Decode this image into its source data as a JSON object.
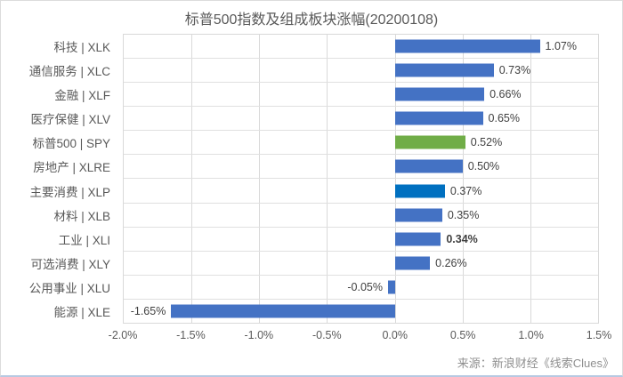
{
  "header": {
    "title": "标普500指数及组成板块涨幅(20200108)"
  },
  "footer": {
    "source": "来源：新浪财经《线索Clues》"
  },
  "colors": {
    "bar_default": "#4472C4",
    "bar_sp500": "#70AD47",
    "bar_xlp": "#0070C0",
    "gridline": "#D9D9D9",
    "axis_text": "#595959",
    "value_text": "#404040",
    "source_text": "#8F8F8F"
  },
  "chart_data": {
    "type": "bar",
    "orientation": "horizontal",
    "title": "标普500指数及组成板块涨幅(20200108)",
    "xlabel": "",
    "ylabel": "",
    "xlim": [
      -2.0,
      1.5
    ],
    "x_ticks": [
      "-2.0%",
      "-1.5%",
      "-1.0%",
      "-0.5%",
      "0.0%",
      "0.5%",
      "1.0%",
      "1.5%"
    ],
    "grid": true,
    "legend_position": "none",
    "categories": [
      "科技 | XLK",
      "通信服务 | XLC",
      "金融 | XLF",
      "医疗保健 | XLV",
      "标普500 | SPY",
      "房地产 | XLRE",
      "主要消费 | XLP",
      "材料 | XLB",
      "工业 | XLI",
      "可选消费 | XLY",
      "公用事业 | XLU",
      "能源 | XLE"
    ],
    "values": [
      1.07,
      0.73,
      0.66,
      0.65,
      0.52,
      0.5,
      0.37,
      0.35,
      0.34,
      0.26,
      -0.05,
      -1.65
    ],
    "value_labels": [
      "1.07%",
      "0.73%",
      "0.66%",
      "0.65%",
      "0.52%",
      "0.50%",
      "0.37%",
      "0.35%",
      "0.34%",
      "0.26%",
      "-0.05%",
      "-1.65%"
    ],
    "bar_colors": [
      "#4472C4",
      "#4472C4",
      "#4472C4",
      "#4472C4",
      "#70AD47",
      "#4472C4",
      "#0070C0",
      "#4472C4",
      "#4472C4",
      "#4472C4",
      "#4472C4",
      "#4472C4"
    ],
    "label_bold": [
      false,
      false,
      false,
      false,
      false,
      false,
      false,
      false,
      true,
      false,
      false,
      false
    ]
  }
}
